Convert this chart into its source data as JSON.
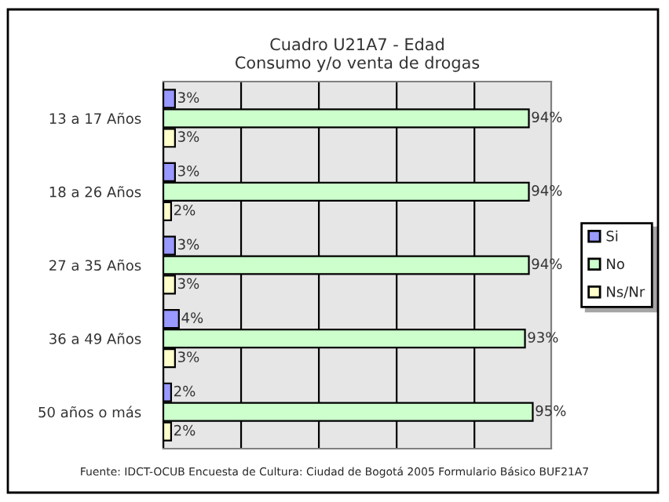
{
  "chart_data": {
    "type": "bar",
    "orientation": "horizontal",
    "title": "Cuadro U21A7 - Edad\nConsumo y/o venta de drogas",
    "categories": [
      "13 a 17 Años",
      "18 a 26 Años",
      "27 a 35 Años",
      "36 a 49 Años",
      "50 años o más"
    ],
    "series": [
      {
        "name": "Si",
        "color": "#9999ff",
        "values": [
          3,
          3,
          3,
          4,
          2
        ],
        "value_labels": [
          "3%",
          "3%",
          "3%",
          "4%",
          "2%"
        ]
      },
      {
        "name": "No",
        "color": "#ccffcc",
        "values": [
          94,
          94,
          94,
          93,
          95
        ],
        "value_labels": [
          "94%",
          "94%",
          "94%",
          "93%",
          "95%"
        ]
      },
      {
        "name": "Ns/Nr",
        "color": "#ffffcc",
        "values": [
          3,
          2,
          3,
          3,
          2
        ],
        "value_labels": [
          "3%",
          "2%",
          "3%",
          "3%",
          "2%"
        ]
      }
    ],
    "tick_labels": "y",
    "grid": "x",
    "legend": "right",
    "annotations": [
      "Fuente: IDCT-OCUB Encuesta de Cultura: Ciudad de Bogotá 2005 Formulario Básico BUF21A7"
    ]
  }
}
